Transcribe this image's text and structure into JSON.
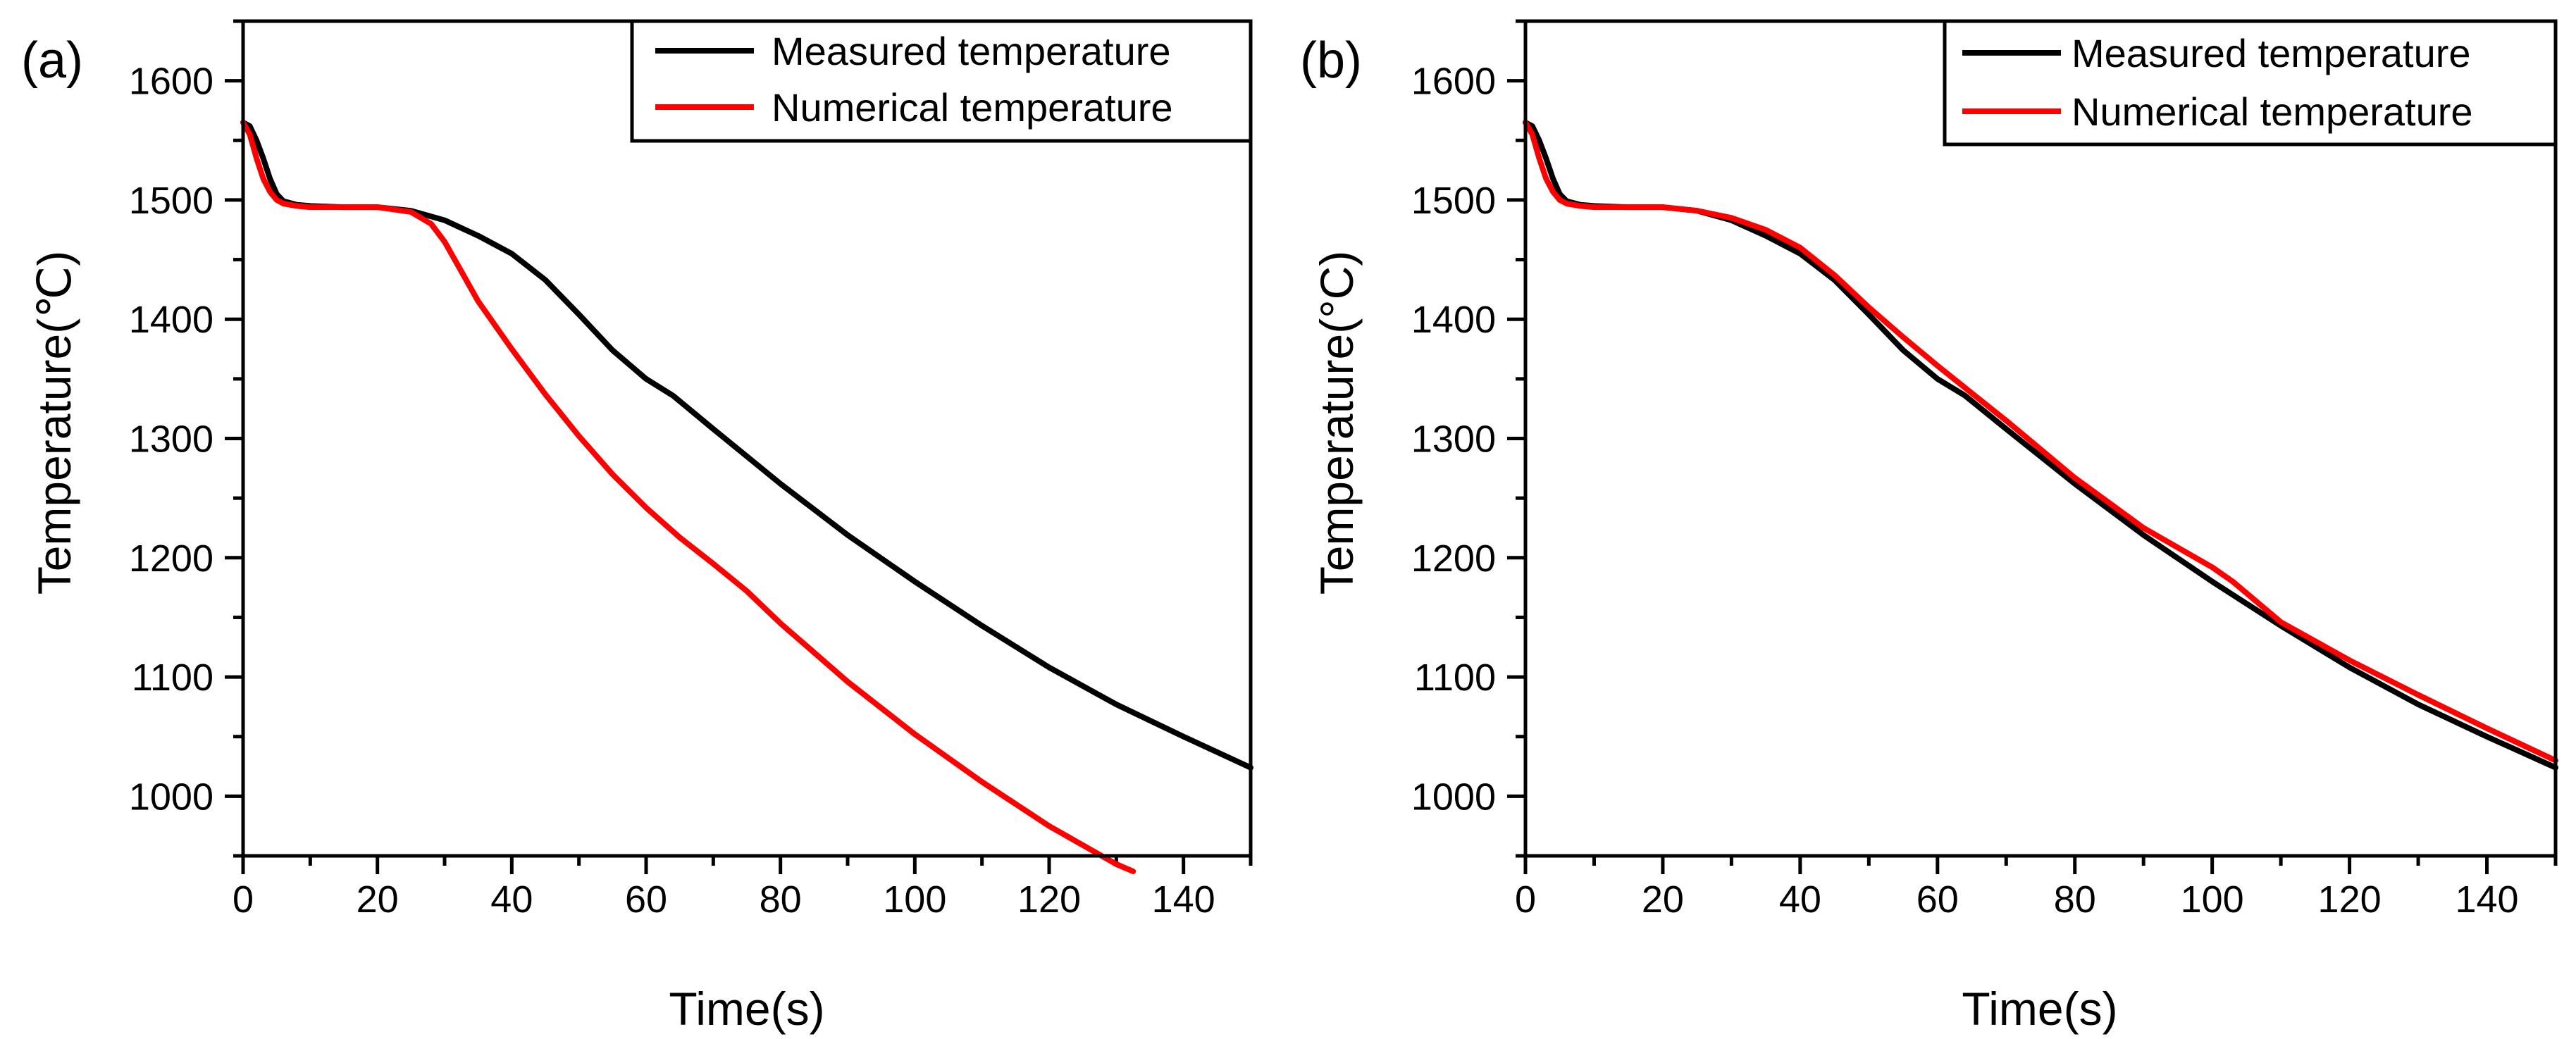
{
  "figure": {
    "colors": {
      "measured": "#000000",
      "numerical": "#ff0000",
      "axis": "#000000"
    }
  },
  "chart_data": [
    {
      "type": "line",
      "panel_label": "(a)",
      "xlabel": "Time(s)",
      "ylabel": "Temperature(℃)",
      "xlim": [
        0,
        150
      ],
      "ylim": [
        950,
        1650
      ],
      "xticks": [
        0,
        20,
        40,
        60,
        80,
        100,
        120,
        140
      ],
      "yticks": [
        1000,
        1100,
        1200,
        1300,
        1400,
        1500,
        1600
      ],
      "grid": false,
      "legend_position": "top-right",
      "series": [
        {
          "name": "Measured temperature",
          "color": "#000000",
          "x": [
            0,
            1,
            2,
            3,
            4,
            5,
            6,
            8,
            10,
            15,
            20,
            25,
            30,
            35,
            40,
            45,
            50,
            55,
            60,
            64,
            70,
            80,
            90,
            100,
            110,
            120,
            130,
            140,
            150
          ],
          "y": [
            1565,
            1562,
            1550,
            1535,
            1518,
            1505,
            1499,
            1496,
            1495,
            1494,
            1494,
            1491,
            1483,
            1470,
            1455,
            1433,
            1404,
            1374,
            1350,
            1336,
            1308,
            1262,
            1219,
            1180,
            1143,
            1108,
            1077,
            1050,
            1024
          ]
        },
        {
          "name": "Numerical temperature",
          "color": "#ff0000",
          "x": [
            0,
            1,
            2,
            3,
            4,
            5,
            6,
            8,
            10,
            15,
            20,
            25,
            28,
            30,
            32,
            35,
            40,
            45,
            50,
            55,
            60,
            65,
            70,
            75,
            80,
            90,
            100,
            110,
            120,
            130,
            132.5
          ],
          "y": [
            1565,
            1555,
            1535,
            1518,
            1507,
            1500,
            1497,
            1495,
            1494,
            1494,
            1494,
            1490,
            1480,
            1465,
            1445,
            1415,
            1375,
            1337,
            1302,
            1270,
            1242,
            1217,
            1195,
            1172,
            1145,
            1096,
            1052,
            1012,
            975,
            943,
            937
          ]
        }
      ]
    },
    {
      "type": "line",
      "panel_label": "(b)",
      "xlabel": "Time(s)",
      "ylabel": "Temperature(°C)",
      "xlim": [
        0,
        150
      ],
      "ylim": [
        950,
        1650
      ],
      "xticks": [
        0,
        20,
        40,
        60,
        80,
        100,
        120,
        140
      ],
      "yticks": [
        1000,
        1100,
        1200,
        1300,
        1400,
        1500,
        1600
      ],
      "grid": false,
      "legend_position": "top-right",
      "series": [
        {
          "name": "Measured temperature",
          "color": "#000000",
          "x": [
            0,
            1,
            2,
            3,
            4,
            5,
            6,
            8,
            10,
            15,
            20,
            25,
            30,
            35,
            40,
            45,
            50,
            55,
            60,
            64,
            70,
            80,
            90,
            100,
            110,
            120,
            130,
            140,
            150
          ],
          "y": [
            1565,
            1562,
            1550,
            1535,
            1518,
            1505,
            1499,
            1496,
            1495,
            1494,
            1494,
            1491,
            1483,
            1470,
            1455,
            1433,
            1404,
            1374,
            1350,
            1336,
            1308,
            1262,
            1219,
            1180,
            1143,
            1108,
            1077,
            1050,
            1024
          ]
        },
        {
          "name": "Numerical temperature",
          "color": "#ff0000",
          "x": [
            0,
            1,
            2,
            3,
            4,
            5,
            6,
            8,
            10,
            15,
            20,
            25,
            30,
            35,
            40,
            45,
            50,
            55,
            60,
            65,
            70,
            80,
            90,
            100,
            103,
            110,
            120,
            130,
            140,
            150
          ],
          "y": [
            1565,
            1555,
            1535,
            1518,
            1507,
            1500,
            1497,
            1495,
            1494,
            1494,
            1494,
            1491,
            1485,
            1475,
            1460,
            1437,
            1410,
            1385,
            1361,
            1338,
            1315,
            1267,
            1225,
            1192,
            1180,
            1146,
            1114,
            1085,
            1057,
            1030
          ]
        }
      ]
    }
  ]
}
